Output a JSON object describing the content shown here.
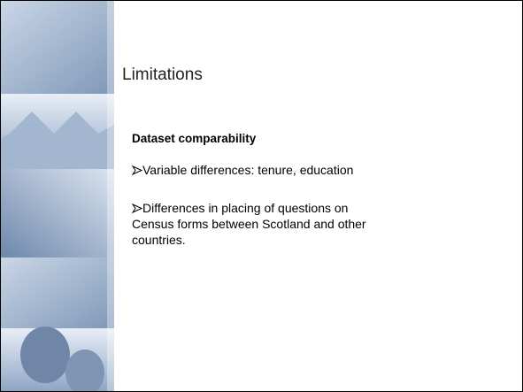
{
  "slide": {
    "title": "Limitations",
    "heading": "Dataset comparability",
    "bullets": [
      "Variable differences: tenure, education",
      "Differences in placing of questions on Census forms between Scotland and other countries."
    ]
  }
}
